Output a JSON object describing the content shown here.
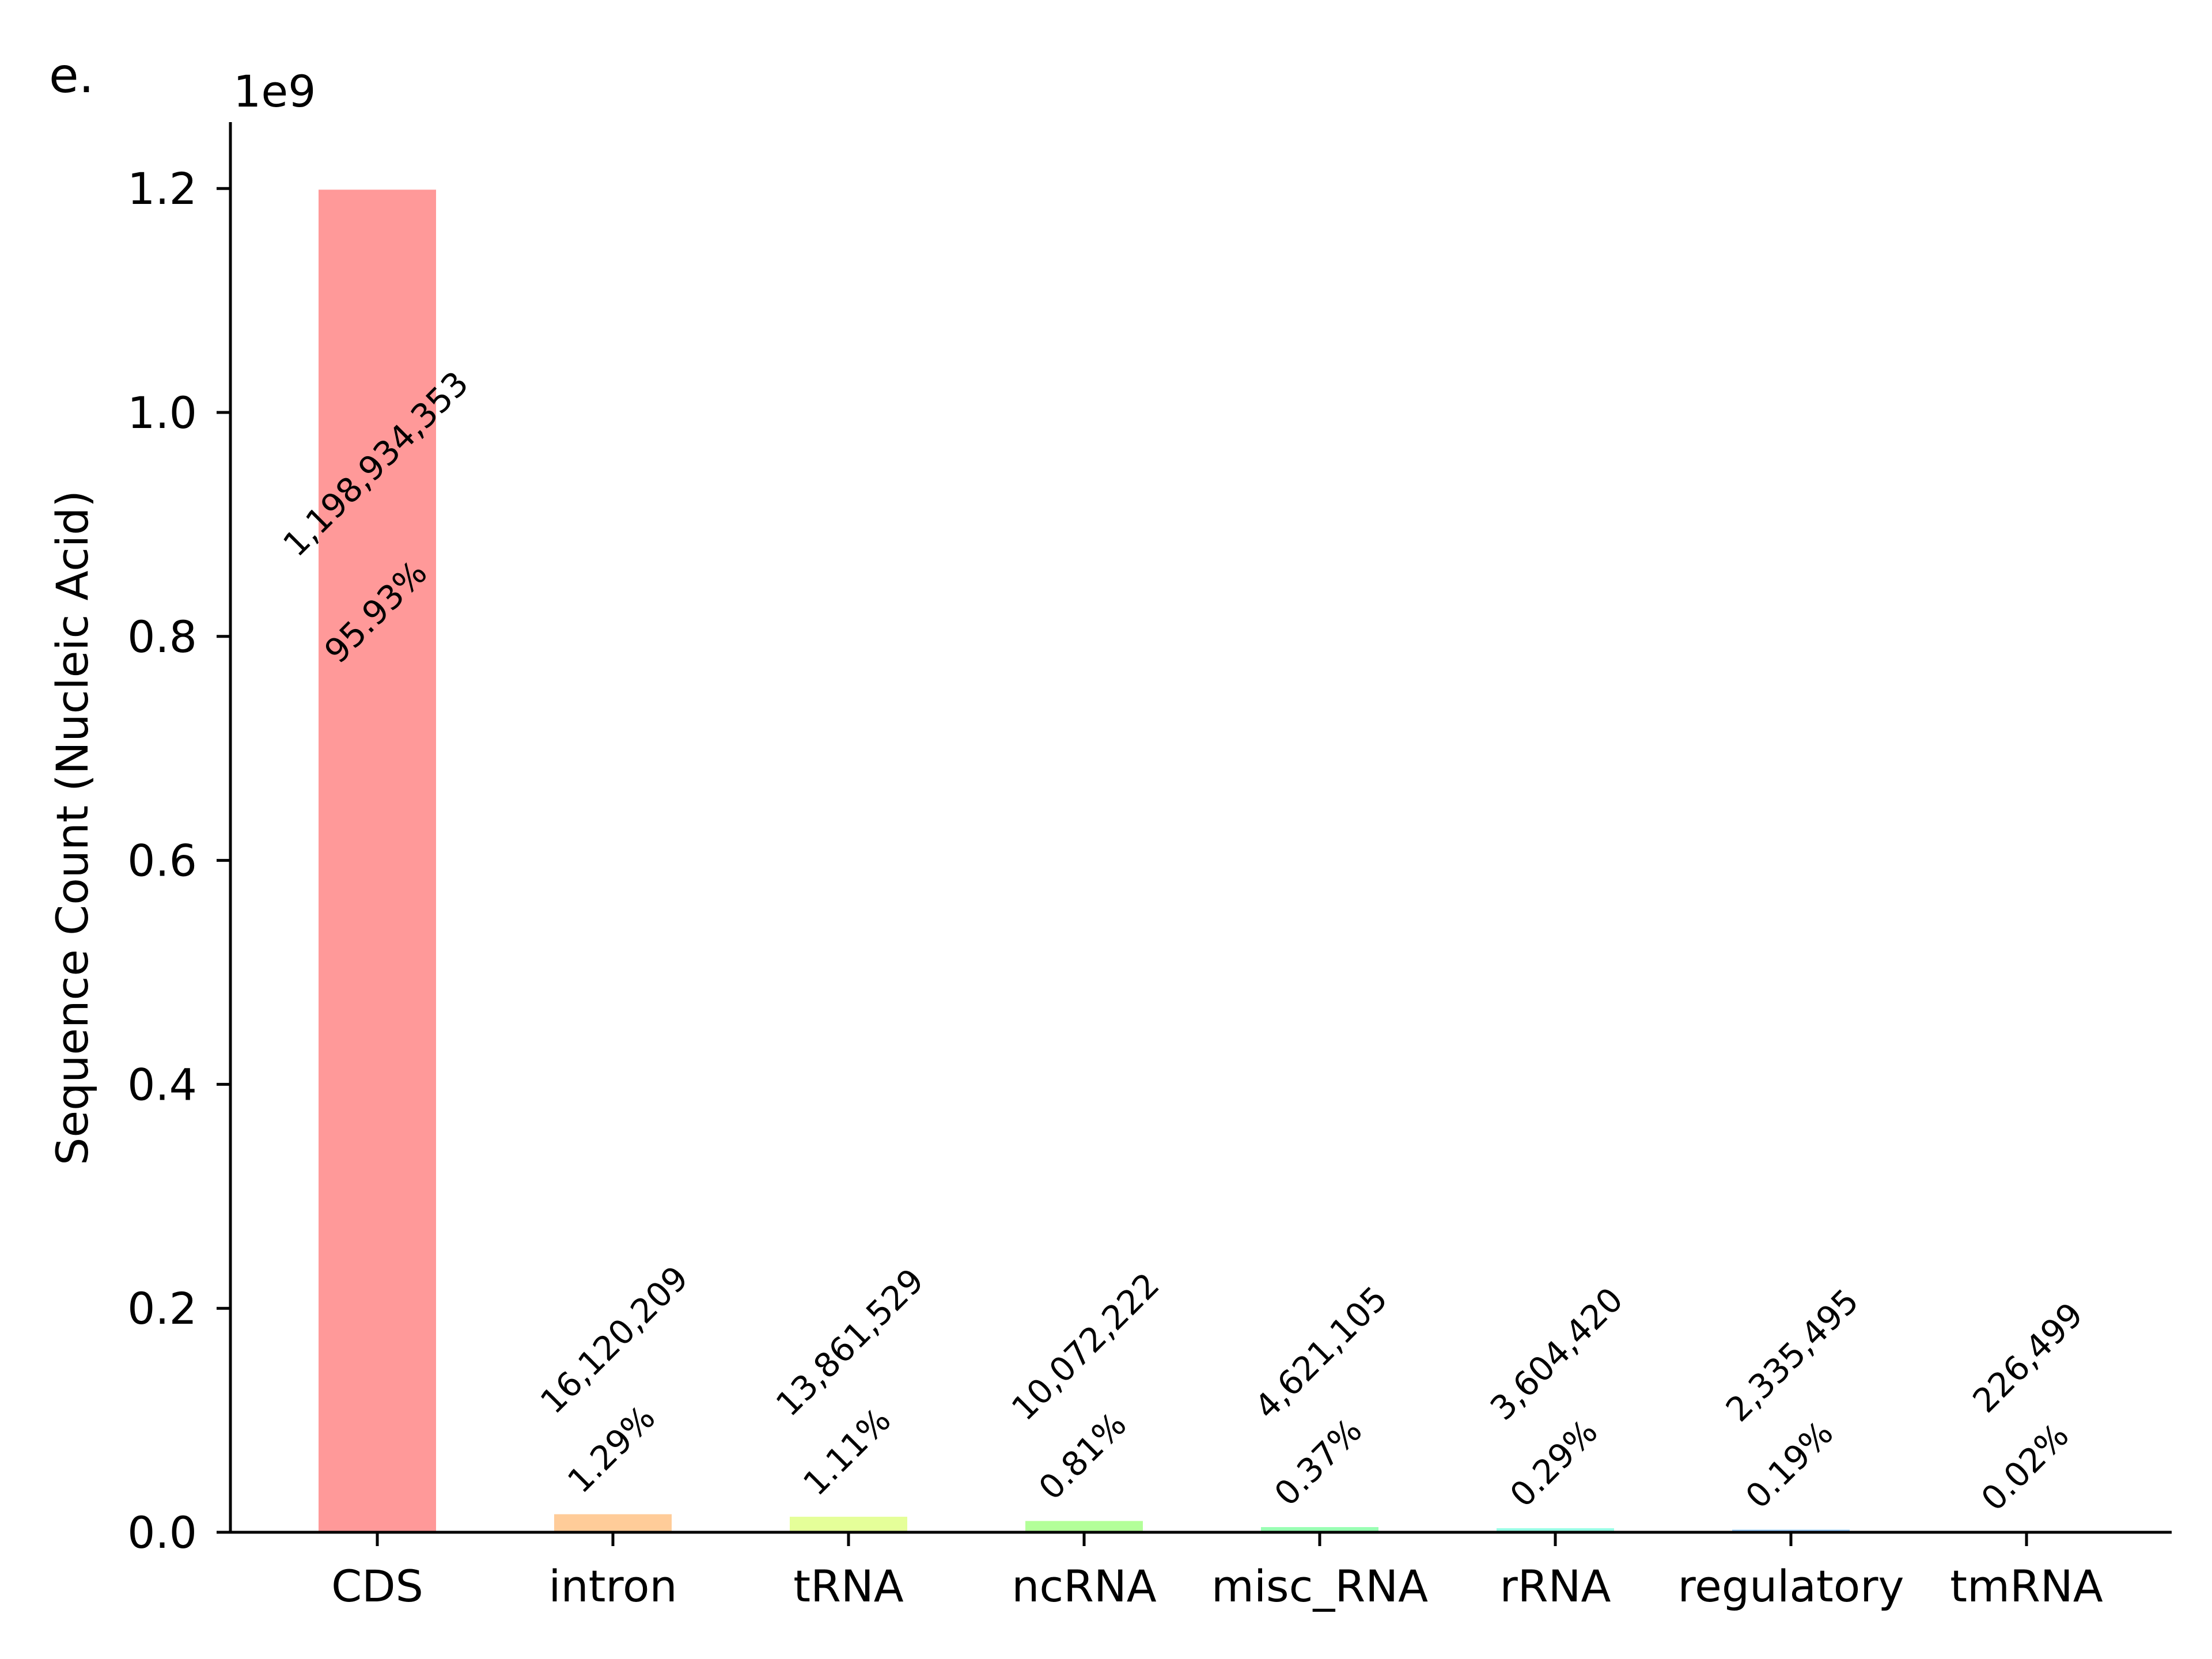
{
  "panel_label": "e.",
  "chart_data": {
    "type": "bar",
    "categories": [
      "CDS",
      "intron",
      "tRNA",
      "ncRNA",
      "misc_RNA",
      "rRNA",
      "regulatory",
      "tmRNA"
    ],
    "values": [
      1198934353,
      16120209,
      13861529,
      10072222,
      4621105,
      3604420,
      2335495,
      226499
    ],
    "count_labels": [
      "1,198,934,353",
      "16,120,209",
      "13,861,529",
      "10,072,222",
      "4,621,105",
      "3,604,420",
      "2,335,495",
      "226,499"
    ],
    "percent_labels": [
      "95.93%",
      "1.29%",
      "1.11%",
      "0.81%",
      "0.37%",
      "0.29%",
      "0.19%",
      "0.02%"
    ],
    "colors": [
      "#ff9999",
      "#ffcc99",
      "#e5ff99",
      "#b3ff99",
      "#99ffb3",
      "#99ffe5",
      "#99ccff",
      "#9999ff"
    ],
    "xlabel": "",
    "ylabel": "Sequence Count (Nucleic Acid)",
    "y_offset_label": "1e9",
    "yticks": [
      0.0,
      0.2,
      0.4,
      0.6,
      0.8,
      1.0,
      1.2
    ],
    "ytick_labels": [
      "0.0",
      "0.2",
      "0.4",
      "0.6",
      "0.8",
      "1.0",
      "1.2"
    ],
    "ylim": [
      0,
      1260000000
    ],
    "grid": false,
    "legend": "none"
  }
}
